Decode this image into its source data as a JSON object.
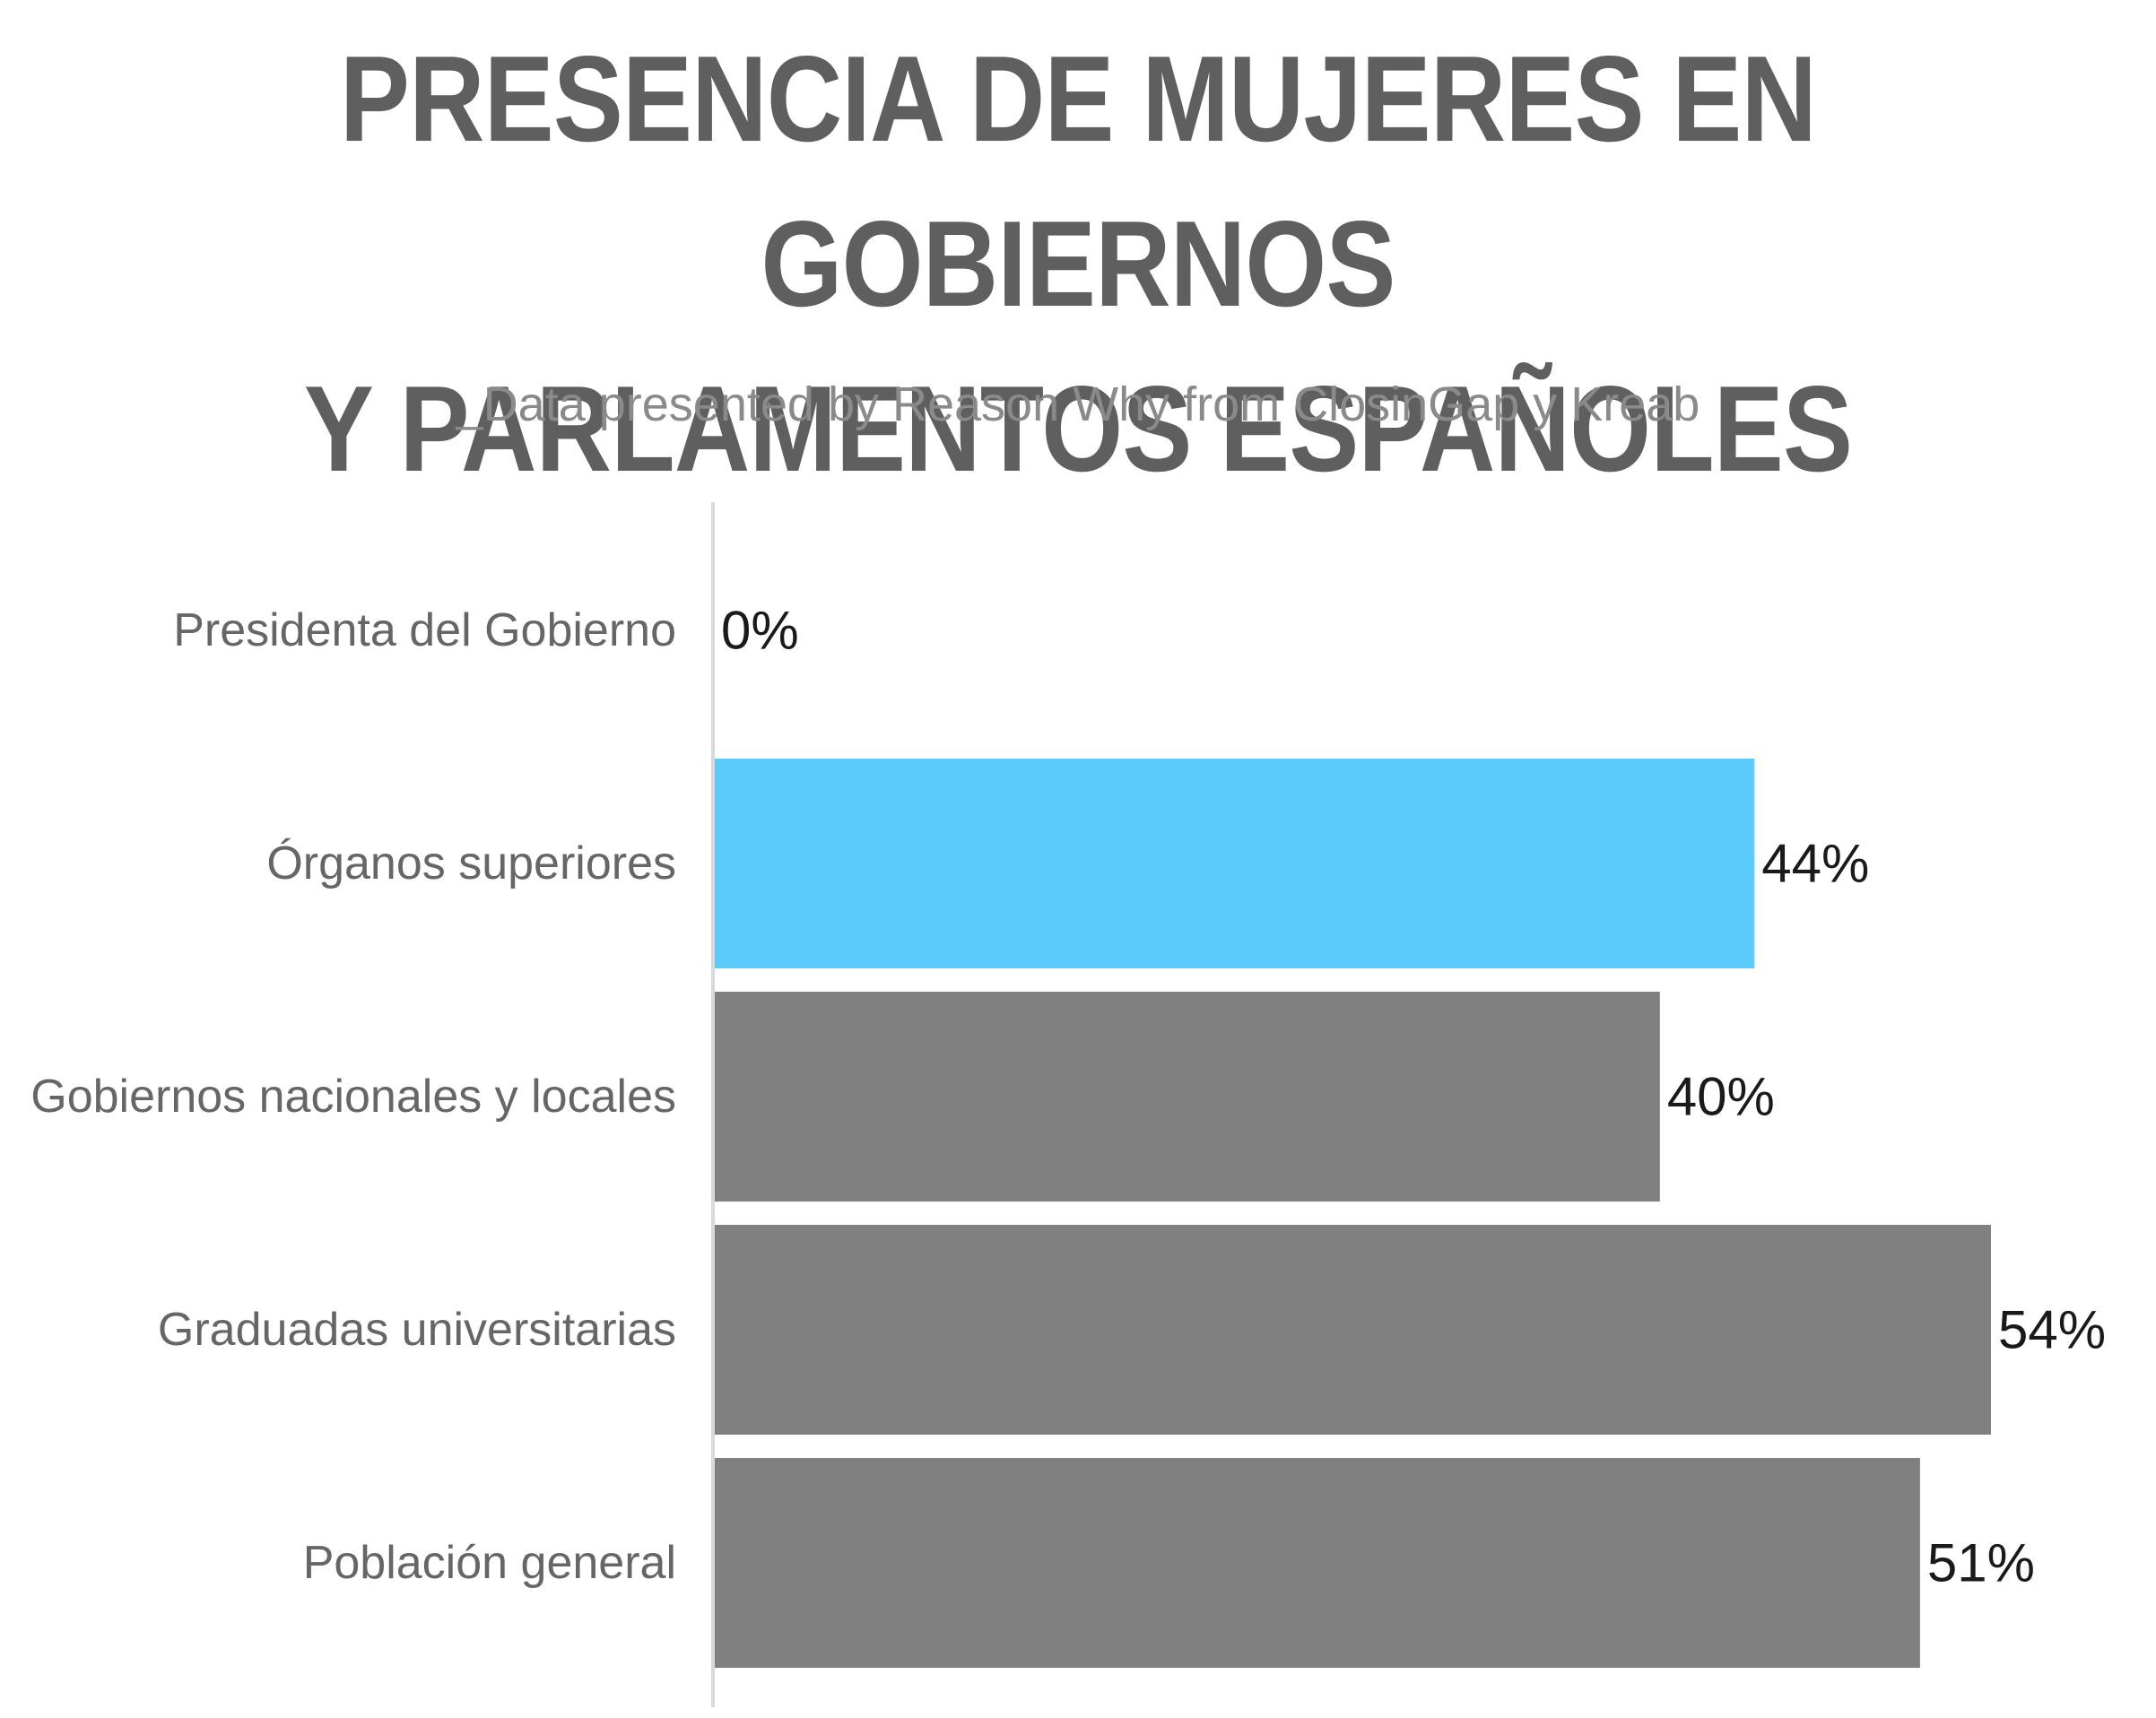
{
  "title_line1": "PRESENCIA DE MUJERES EN GOBIERNOS",
  "title_line2": "Y PARLAMENTOS ESPAÑOLES",
  "subtitle": "_Data presented by Reason Why from ClosinGap y Kreab",
  "colors": {
    "title": "#5f5f5f",
    "subtitle": "#8a8a8a",
    "category_label": "#666666",
    "value_label": "#1a1a1a",
    "highlight_bar": "#5bcbfc",
    "bar": "#808080",
    "axis_line": "#d9d9d9"
  },
  "chart_data": {
    "type": "bar",
    "orientation": "horizontal",
    "categories": [
      "Presidenta del Gobierno",
      "Órganos superiores",
      "Gobiernos nacionales y locales",
      "Graduadas universitarias",
      "Población general"
    ],
    "values": [
      0,
      44,
      40,
      54,
      51
    ],
    "value_labels": [
      "0%",
      "44%",
      "40%",
      "54%",
      "51%"
    ],
    "highlight_index": 1,
    "xlim": [
      0,
      54
    ],
    "grid": false,
    "legend": "none"
  }
}
